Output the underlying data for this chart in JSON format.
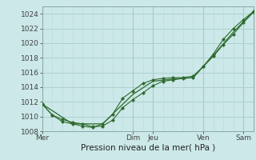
{
  "bg_color": "#cce8e8",
  "grid_color_major": "#aacccc",
  "grid_color_minor": "#bbdddd",
  "line_color": "#2d6a2d",
  "marker_color": "#2d6a2d",
  "xlabel": "Pression niveau de la mer( hPa )",
  "xlabel_fontsize": 7.5,
  "tick_fontsize": 6.5,
  "ylim": [
    1008,
    1025
  ],
  "yticks": [
    1008,
    1010,
    1012,
    1014,
    1016,
    1018,
    1020,
    1022,
    1024
  ],
  "day_labels": [
    "Mer",
    "Dim",
    "Jeu",
    "Ven",
    "Sam"
  ],
  "day_positions": [
    0.0,
    4.5,
    5.5,
    8.0,
    10.0
  ],
  "vline_positions": [
    0.0,
    4.5,
    5.5,
    8.0,
    10.0
  ],
  "xmin": 0.0,
  "xmax": 10.5,
  "series1_x": [
    0.0,
    0.5,
    1.0,
    1.5,
    2.0,
    2.5,
    3.0,
    3.5,
    4.0,
    4.5,
    5.0,
    5.5,
    6.0,
    6.5,
    7.0,
    7.5,
    8.0,
    8.5,
    9.0,
    9.5,
    10.0,
    10.5
  ],
  "series1_y": [
    1011.7,
    1010.2,
    1009.6,
    1009.2,
    1009.0,
    1008.6,
    1008.7,
    1009.5,
    1011.2,
    1012.3,
    1013.2,
    1014.2,
    1014.8,
    1015.0,
    1015.2,
    1015.3,
    1016.8,
    1018.2,
    1019.8,
    1021.2,
    1022.8,
    1024.2
  ],
  "series2_x": [
    0.0,
    0.5,
    1.0,
    1.5,
    2.0,
    2.5,
    3.0,
    3.5,
    4.0,
    4.5,
    5.0,
    5.5,
    6.0,
    6.5,
    7.0,
    7.5,
    8.0,
    8.5,
    9.0,
    9.5,
    10.0,
    10.5
  ],
  "series2_y": [
    1011.7,
    1010.2,
    1009.3,
    1009.0,
    1008.7,
    1008.5,
    1009.0,
    1010.3,
    1012.5,
    1013.5,
    1014.5,
    1015.0,
    1015.2,
    1015.3,
    1015.3,
    1015.5,
    1016.8,
    1018.5,
    1020.5,
    1022.0,
    1023.2,
    1024.3
  ],
  "series3_x": [
    0.0,
    1.5,
    3.0,
    4.5,
    5.5,
    6.5,
    7.5,
    8.5,
    9.5,
    10.5
  ],
  "series3_y": [
    1011.7,
    1009.0,
    1009.0,
    1013.0,
    1014.8,
    1015.1,
    1015.3,
    1018.3,
    1021.5,
    1024.3
  ]
}
